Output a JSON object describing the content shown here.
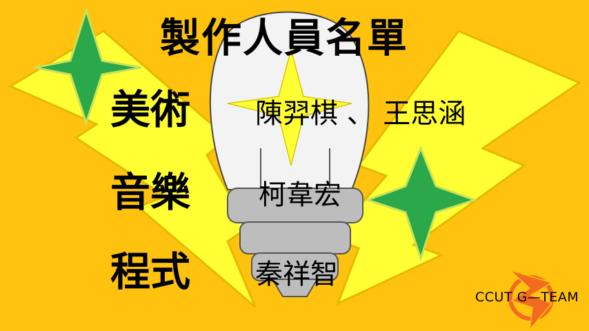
{
  "credits": {
    "title": "製作人員名單",
    "roles": [
      {
        "role": "美術",
        "names": "陳羿棋 、 王思涵"
      },
      {
        "role": "音樂",
        "names": "柯韋宏"
      },
      {
        "role": "程式",
        "names": "秦祥智"
      }
    ]
  },
  "team": {
    "label": "CCUT  G—TEAM"
  },
  "colors": {
    "background": "#ffc20e",
    "bolt": "#ffff33",
    "bolt_outline": "#e6b800",
    "star": "#2aa84a",
    "star_outline": "#c8e05a",
    "bulb_glass": "#f3f3f3",
    "bulb_base": "#bdbdbd",
    "logo": "#f26b21"
  },
  "icons": [
    "lightning-bolt-icon",
    "sparkle-star-icon",
    "light-bulb-icon",
    "team-logo-icon"
  ]
}
